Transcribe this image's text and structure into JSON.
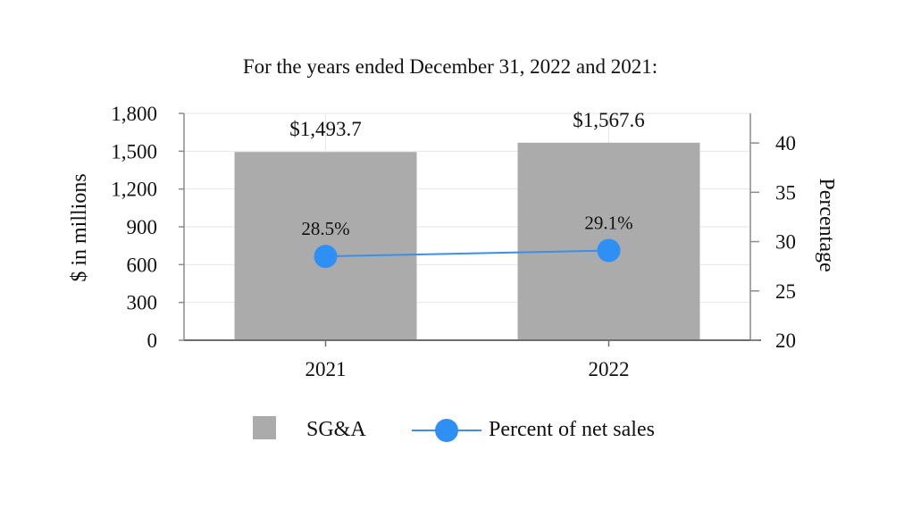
{
  "chart_data": {
    "type": "bar+line",
    "title": "For the years ended December 31, 2022 and 2021:",
    "categories": [
      "2021",
      "2022"
    ],
    "series": [
      {
        "name": "SG&A",
        "kind": "bar",
        "axis": "left",
        "values": [
          1493.7,
          1567.6
        ],
        "labels": [
          "$1,493.7",
          "$1,567.6"
        ],
        "color": "#ababab"
      },
      {
        "name": "Percent of net sales",
        "kind": "line",
        "axis": "right",
        "values": [
          28.5,
          29.1
        ],
        "labels": [
          "28.5%",
          "29.1%"
        ],
        "color": "#2e8ff5",
        "line_color": "#3c8ee6"
      }
    ],
    "ylabel_left": "$ in millions",
    "ylim_left": [
      0,
      1800
    ],
    "yticks_left": [
      0,
      300,
      600,
      900,
      1200,
      1500,
      1800
    ],
    "ytick_labels_left": [
      "0",
      "300",
      "600",
      "900",
      "1,200",
      "1,500",
      "1,800"
    ],
    "ylabel_right": "Percentage",
    "ylim_right": [
      20,
      43
    ],
    "yticks_right": [
      20,
      25,
      30,
      35,
      40
    ],
    "ytick_labels_right": [
      "20",
      "25",
      "30",
      "35",
      "40"
    ],
    "grid": true,
    "legend_position": "bottom"
  }
}
